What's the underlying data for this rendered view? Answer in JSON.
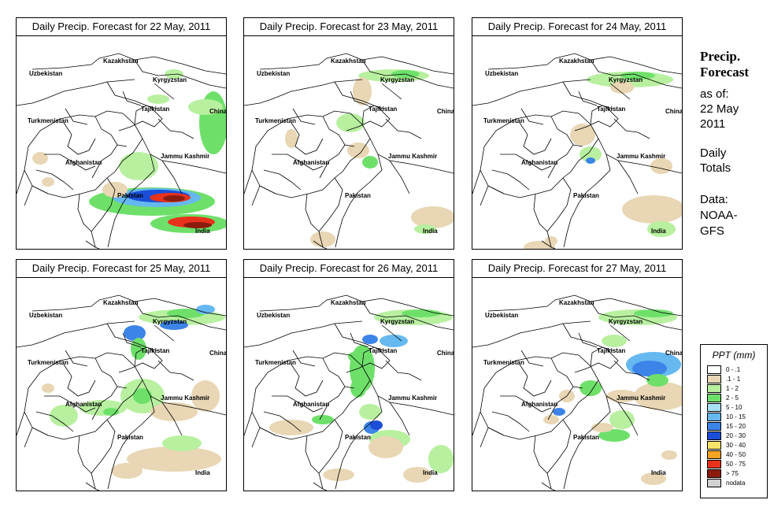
{
  "panels": [
    {
      "title": "Daily Precip. Forecast for  22 May, 2011"
    },
    {
      "title": "Daily Precip. Forecast for  23 May, 2011"
    },
    {
      "title": "Daily Precip. Forecast for  24 May, 2011"
    },
    {
      "title": "Daily Precip. Forecast for  25 May, 2011"
    },
    {
      "title": "Daily Precip. Forecast for  26 May, 2011"
    },
    {
      "title": "Daily Precip. Forecast for  27 May, 2011"
    }
  ],
  "map_labels": {
    "kazakhstan": "Kazakhstan",
    "uzbekistan": "Uzbekistan",
    "kyrgyzstan": "Kyrgyzstan",
    "tajikistan": "Tajikistan",
    "china": "China",
    "turkmenistan": "Turkmenistan",
    "jammu_kashmir": "Jammu Kashmir",
    "afghanistan": "Afghanistan",
    "pakistan": "Pakistan",
    "india": "India"
  },
  "sidebar": {
    "title_line1": "Precip.",
    "title_line2": "Forecast",
    "asof_line1": "as of:",
    "asof_line2": "22 May",
    "asof_line3": "2011",
    "daily_line1": "Daily",
    "daily_line2": "Totals",
    "data_line1": "Data:",
    "data_line2": "NOAA-",
    "data_line3": "GFS"
  },
  "legend": {
    "title": "PPT (mm)",
    "items": [
      {
        "label": "0 - .1",
        "color": "#ffffff"
      },
      {
        "label": ".1 - 1",
        "color": "#e8d6b4"
      },
      {
        "label": "1 - 2",
        "color": "#b8f0a0"
      },
      {
        "label": "2 - 5",
        "color": "#6ee06a"
      },
      {
        "label": "5 - 10",
        "color": "#a8e0f4"
      },
      {
        "label": "10 - 15",
        "color": "#66b8f0"
      },
      {
        "label": "15 - 20",
        "color": "#3c84e8"
      },
      {
        "label": "20 - 30",
        "color": "#1a4ed8"
      },
      {
        "label": "30 - 40",
        "color": "#f6e468"
      },
      {
        "label": "40 - 50",
        "color": "#f6a224"
      },
      {
        "label": "50 - 75",
        "color": "#e8321c"
      },
      {
        "label": "> 75",
        "color": "#8c1c10"
      },
      {
        "label": "nodata",
        "color": "#d0d0d0"
      }
    ]
  }
}
